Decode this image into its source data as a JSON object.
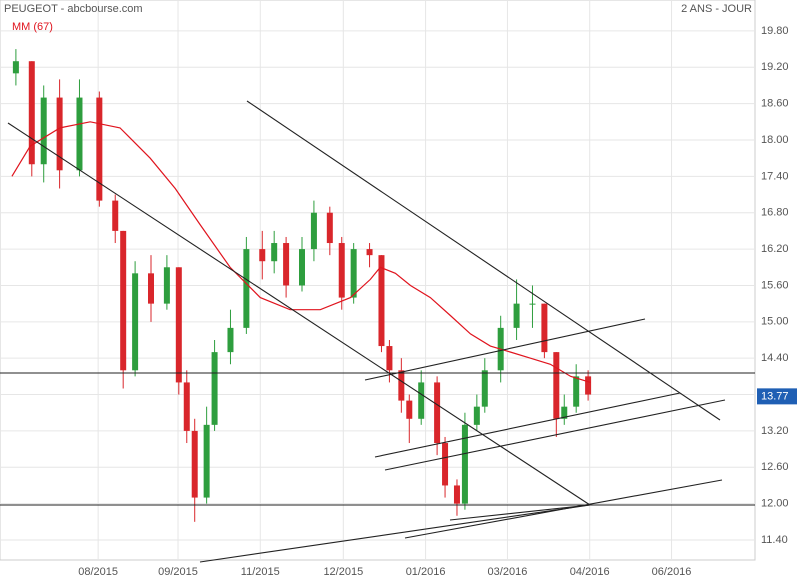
{
  "chart_data": {
    "type": "candlestick",
    "title": "PEUGEOT - abcbourse.com",
    "subtitle": "2 ANS - JOUR",
    "xlim": [
      0,
      190
    ],
    "xticks": [
      {
        "value": 24.7,
        "label": "08/2015"
      },
      {
        "value": 44.8,
        "label": "09/2015"
      },
      {
        "value": 65.5,
        "label": "11/2015"
      },
      {
        "value": 86.4,
        "label": "12/2015"
      },
      {
        "value": 107.1,
        "label": "01/2016"
      },
      {
        "value": 127.7,
        "label": "03/2016"
      },
      {
        "value": 148.4,
        "label": "04/2016"
      },
      {
        "value": 169.0,
        "label": "06/2016"
      }
    ],
    "ylim": [
      11.07,
      20.31
    ],
    "yticks": [
      {
        "value": 11.4,
        "label": "11.40"
      },
      {
        "value": 12.0,
        "label": "12.00"
      },
      {
        "value": 12.6,
        "label": "12.60"
      },
      {
        "value": 13.2,
        "label": "13.20"
      },
      {
        "value": 13.8,
        "label": "13.80"
      },
      {
        "value": 14.4,
        "label": "14.40"
      },
      {
        "value": 15.0,
        "label": "15.00"
      },
      {
        "value": 15.6,
        "label": "15.60"
      },
      {
        "value": 16.2,
        "label": "16.20"
      },
      {
        "value": 16.8,
        "label": "16.80"
      },
      {
        "value": 17.4,
        "label": "17.40"
      },
      {
        "value": 18.0,
        "label": "18.00"
      },
      {
        "value": 18.6,
        "label": "18.60"
      },
      {
        "value": 19.2,
        "label": "19.20"
      },
      {
        "value": 19.8,
        "label": "19.80"
      }
    ],
    "grid": true,
    "up_color": "#2e9e3e",
    "down_color": "#d9262b",
    "x": [
      4,
      8,
      11,
      15,
      20,
      25,
      29,
      31,
      34,
      38,
      42,
      45,
      47,
      49,
      52,
      54,
      58,
      62,
      66,
      69,
      72,
      76,
      79,
      83,
      86,
      89,
      93,
      96,
      98,
      101,
      103,
      106,
      110,
      112,
      115,
      117,
      120,
      122,
      126,
      130,
      134,
      137,
      140,
      142,
      145,
      148
    ],
    "open": [
      19.1,
      19.3,
      17.6,
      18.7,
      17.5,
      18.7,
      17.0,
      16.5,
      14.2,
      15.8,
      15.3,
      15.9,
      14.0,
      13.2,
      12.1,
      13.3,
      14.5,
      14.9,
      16.2,
      16.0,
      16.3,
      15.6,
      16.2,
      16.8,
      16.3,
      15.4,
      16.2,
      16.1,
      14.6,
      14.2,
      13.7,
      13.4,
      14.0,
      13.0,
      12.3,
      12.0,
      13.3,
      13.6,
      14.2,
      14.9,
      15.3,
      15.3,
      14.5,
      13.4,
      13.6,
      14.1
    ],
    "high": [
      19.5,
      19.3,
      18.9,
      19.0,
      19.0,
      18.8,
      17.1,
      16.5,
      16.0,
      16.1,
      16.1,
      15.9,
      14.2,
      13.4,
      13.6,
      14.7,
      15.2,
      16.4,
      16.5,
      16.5,
      16.4,
      16.4,
      17.0,
      16.9,
      16.4,
      16.3,
      16.3,
      16.1,
      14.7,
      14.4,
      13.8,
      14.2,
      14.1,
      13.1,
      12.4,
      13.5,
      13.8,
      14.4,
      15.1,
      15.7,
      15.6,
      15.3,
      14.5,
      13.8,
      14.3,
      14.2
    ],
    "low": [
      18.9,
      17.4,
      17.3,
      17.2,
      17.4,
      16.9,
      16.3,
      13.9,
      14.1,
      15.0,
      15.2,
      13.8,
      13.0,
      11.7,
      12.0,
      13.2,
      14.3,
      14.8,
      15.7,
      15.8,
      15.4,
      15.5,
      16.0,
      16.1,
      15.2,
      15.3,
      15.9,
      14.5,
      14.0,
      13.5,
      13.0,
      13.3,
      12.8,
      12.1,
      11.8,
      11.9,
      13.2,
      13.5,
      14.0,
      14.7,
      14.9,
      14.4,
      13.1,
      13.3,
      13.5,
      13.7
    ],
    "close": [
      19.3,
      17.6,
      18.7,
      17.5,
      18.7,
      17.0,
      16.5,
      14.2,
      15.8,
      15.3,
      15.9,
      14.0,
      13.2,
      12.1,
      13.3,
      14.5,
      14.9,
      16.2,
      16.0,
      16.3,
      15.6,
      16.2,
      16.8,
      16.3,
      15.4,
      16.2,
      16.1,
      14.6,
      14.2,
      13.7,
      13.4,
      14.0,
      13.0,
      12.3,
      12.0,
      13.3,
      13.6,
      14.2,
      14.9,
      15.3,
      15.3,
      14.5,
      13.4,
      13.6,
      14.1,
      13.8
    ],
    "moving_average": {
      "name": "MM (67)",
      "color": "#e0141e",
      "x": [
        3,
        7.6,
        15.1,
        22.7,
        30.2,
        37.8,
        44.1,
        50.4,
        57.9,
        65.5,
        73,
        80.6,
        88.2,
        93.2,
        95.7,
        99.5,
        103.3,
        108.3,
        113.4,
        118.4,
        123.4,
        128.5,
        133.5,
        138.5,
        143.6,
        148.6
      ],
      "values": [
        17.4,
        17.9,
        18.2,
        18.3,
        18.2,
        17.7,
        17.2,
        16.6,
        15.9,
        15.4,
        15.2,
        15.2,
        15.4,
        15.7,
        15.9,
        15.8,
        15.6,
        15.4,
        15.1,
        14.8,
        14.6,
        14.5,
        14.4,
        14.3,
        14.1,
        14.0
      ]
    },
    "last_value": 13.77
  }
}
